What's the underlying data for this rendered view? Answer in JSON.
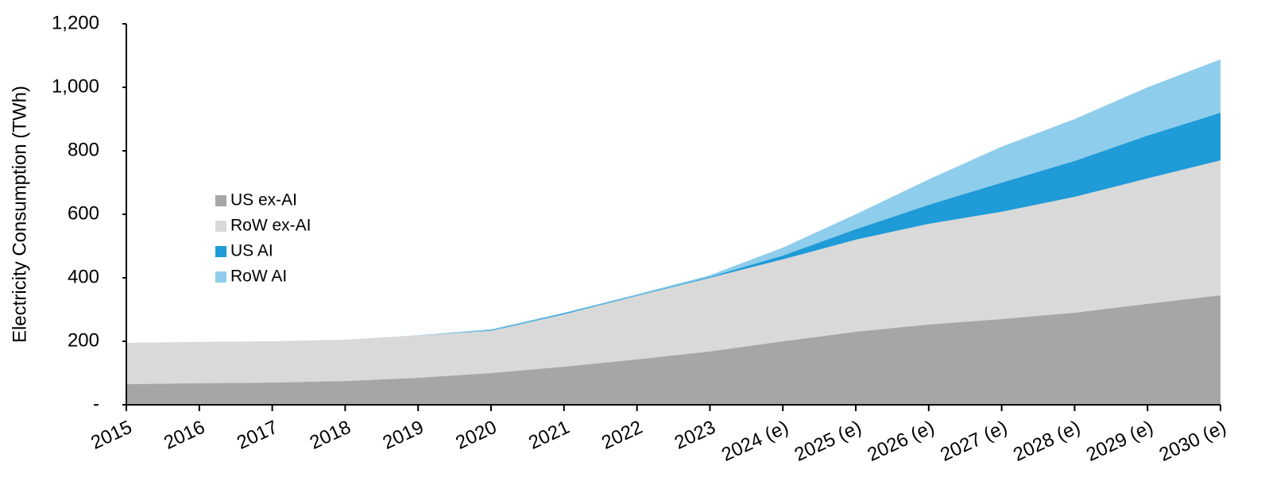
{
  "chart_data": {
    "type": "stacked_area",
    "y_label": "Electricity Consumption (TWh)",
    "categories": [
      "2015",
      "2016",
      "2017",
      "2018",
      "2019",
      "2020",
      "2021",
      "2022",
      "2023",
      "2024 (e)",
      "2025 (e)",
      "2026 (e)",
      "2027 (e)",
      "2028 (e)",
      "2029 (e)",
      "2030 (e)"
    ],
    "series": [
      {
        "name": "US ex-AI",
        "color": "#a6a6a6",
        "values": [
          65,
          68,
          70,
          75,
          85,
          100,
          120,
          143,
          168,
          200,
          230,
          253,
          270,
          290,
          318,
          345
        ]
      },
      {
        "name": "RoW ex-AI",
        "color": "#d9d9d9",
        "values": [
          130,
          130,
          130,
          130,
          133,
          133,
          165,
          200,
          232,
          258,
          290,
          317,
          338,
          365,
          395,
          425
        ]
      },
      {
        "name": "US AI",
        "color": "#1f9bd7",
        "values": [
          0,
          0,
          0,
          0,
          0,
          2,
          3,
          2,
          3,
          12,
          33,
          60,
          92,
          113,
          135,
          150
        ]
      },
      {
        "name": "RoW AI",
        "color": "#8ecdeb",
        "values": [
          0,
          0,
          0,
          0,
          1,
          3,
          2,
          3,
          5,
          25,
          47,
          80,
          113,
          132,
          152,
          168
        ]
      }
    ],
    "ylim": [
      0,
      1200
    ],
    "yticks": [
      {
        "value": 0,
        "label": "-"
      },
      200,
      400,
      600,
      800,
      {
        "value": 1000,
        "label": "1,000"
      },
      {
        "value": 1200,
        "label": "1,200"
      }
    ],
    "grid": false
  }
}
